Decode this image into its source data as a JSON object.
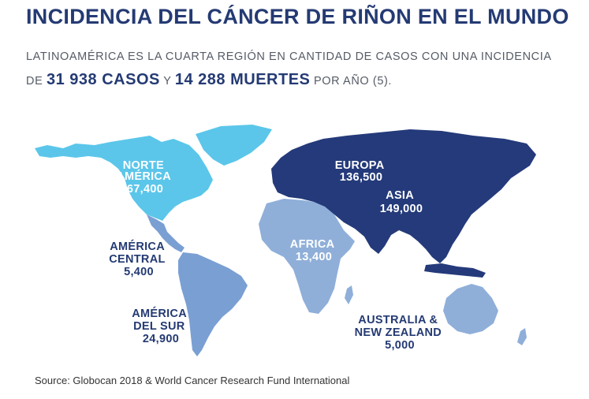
{
  "title": "INCIDENCIA DEL CÁNCER DE RIÑON EN EL MUNDO",
  "subtitle": {
    "line1": "LATINOAMÉRICA ES LA CUARTA REGIÓN EN CANTIDAD DE CASOS CON UNA INCIDENCIA",
    "de": "DE ",
    "cases": "31 938  CASOS",
    "y": " Y ",
    "deaths": "14 288 MUERTES",
    "per_year": " POR AÑO (5)."
  },
  "colors": {
    "north_america": "#5bc6ea",
    "latin_america": "#7a9fd3",
    "africa_oceania": "#8fafd9",
    "eurasia": "#243a7a",
    "label_dark": "#243a73",
    "label_light": "#ffffff"
  },
  "regions": [
    {
      "name_lines": [
        "NORTE",
        "AMÉRICA"
      ],
      "value": "67,400"
    },
    {
      "name_lines": [
        "EUROPA"
      ],
      "value": "136,500"
    },
    {
      "name_lines": [
        "ASIA"
      ],
      "value": "149,000"
    },
    {
      "name_lines": [
        "AMÉRICA",
        "CENTRAL"
      ],
      "value": "5,400"
    },
    {
      "name_lines": [
        "AFRICA"
      ],
      "value": "13,400"
    },
    {
      "name_lines": [
        "AMÉRICA",
        "DEL SUR"
      ],
      "value": "24,900"
    },
    {
      "name_lines": [
        "AUSTRALIA &",
        "NEW ZEALAND"
      ],
      "value": "5,000"
    }
  ],
  "source": "Source: Globocan 2018 & World Cancer Research Fund International"
}
